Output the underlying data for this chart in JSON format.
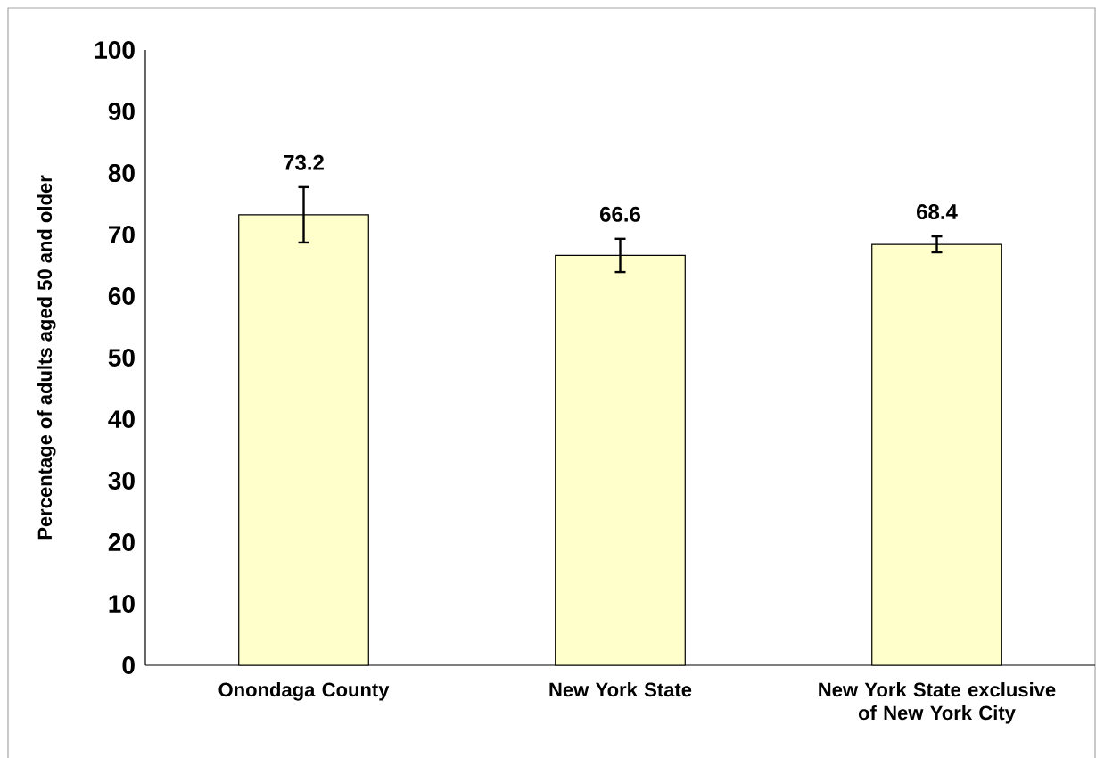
{
  "chart_data": {
    "type": "bar",
    "ylabel": "Percentage of adults aged 50 and older",
    "categories": [
      "Onondaga County",
      "New York State",
      "New York State exclusive of New York City"
    ],
    "values": [
      73.2,
      66.6,
      68.4
    ],
    "errors": [
      4.5,
      2.7,
      1.3
    ],
    "color": "#ffffcc",
    "ylim": [
      0,
      100
    ],
    "yticks": [
      0,
      10,
      20,
      30,
      40,
      50,
      60,
      70,
      80,
      90,
      100
    ],
    "data_labels": true
  }
}
